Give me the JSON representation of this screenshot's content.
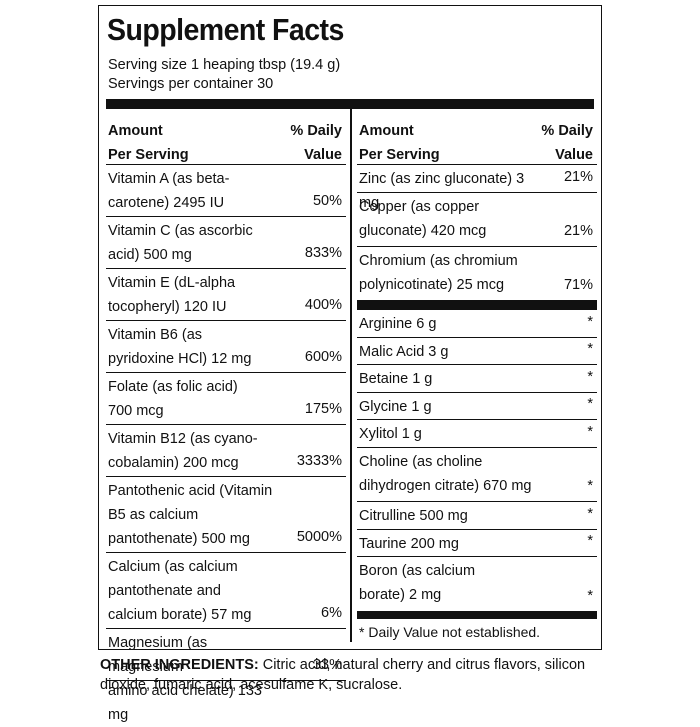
{
  "title": "Supplement Facts",
  "serving_size": "Serving size 1 heaping tbsp (19.4 g)",
  "servings_per_container": "Servings per container 30",
  "header": {
    "amount_line1": "Amount",
    "amount_line2": "Per Serving",
    "dv_line1": "% Daily",
    "dv_line2": "Value"
  },
  "left_rows": [
    {
      "line1": "Vitamin A (as beta-",
      "line2": "carotene)  2495 IU",
      "dv": "50%"
    },
    {
      "line1": "Vitamin C (as ascorbic",
      "line2": "acid) 500 mg",
      "dv": "833%"
    },
    {
      "line1": "Vitamin E (dL-alpha",
      "line2": "tocopheryl) 120 IU",
      "dv": "400%"
    },
    {
      "line1": "Vitamin B6 (as",
      "line2": "pyridoxine HCl) 12 mg",
      "dv": "600%"
    },
    {
      "line1": "Folate (as folic acid)",
      "line2": "700 mcg",
      "dv": "175%"
    },
    {
      "line1": "Vitamin B12 (as cyano-",
      "line2": "cobalamin) 200 mcg",
      "dv": "3333%"
    },
    {
      "line1": "Pantothenic acid (Vitamin",
      "line2": "B5 as calcium",
      "line3": "pantothenate) 500 mg",
      "dv": "5000%"
    },
    {
      "line1": "Calcium (as calcium",
      "line2": "pantothenate and",
      "line3": "calcium borate) 57 mg",
      "dv": "6%"
    },
    {
      "line1": "Magnesium (as magnesium",
      "line2": "amino acid chelate) 133 mg",
      "dv": "33%"
    }
  ],
  "right_rows_top": [
    {
      "line1": "Zinc (as zinc gluconate) 3 mg",
      "dv": "21%"
    },
    {
      "line1": "Copper (as copper",
      "line2": "gluconate) 420 mcg",
      "dv": "21%"
    },
    {
      "line1": "Chromium (as chromium",
      "line2": "polynicotinate) 25 mcg",
      "dv": "71%"
    }
  ],
  "right_rows_bottom": [
    {
      "line1": "Arginine  6 g",
      "dv": "*"
    },
    {
      "line1": "Malic Acid 3 g",
      "dv": "*"
    },
    {
      "line1": "Betaine 1 g",
      "dv": "*"
    },
    {
      "line1": "Glycine 1 g",
      "dv": "*"
    },
    {
      "line1": "Xylitol 1 g",
      "dv": "*"
    },
    {
      "line1": "Choline (as choline",
      "line2": "dihydrogen citrate) 670 mg",
      "dv": "*"
    },
    {
      "line1": "Citrulline  500 mg",
      "dv": "*"
    },
    {
      "line1": "Taurine 200 mg",
      "dv": "*"
    },
    {
      "line1": "Boron (as calcium",
      "line2": "borate)  2 mg",
      "dv": "*"
    }
  ],
  "footnote": "* Daily Value not established.",
  "other_ingredients_label": "OTHER INGREDIENTS:",
  "other_ingredients_text": " Citric acid, natural cherry and citrus flavors, silicon dioxide, fumaric acid, acesulfame K, sucralose."
}
